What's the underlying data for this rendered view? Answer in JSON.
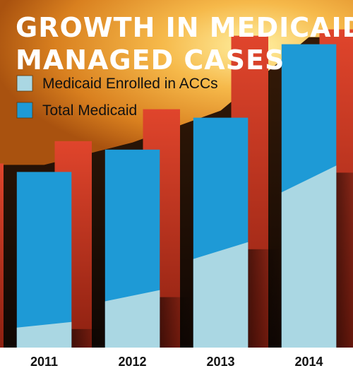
{
  "chart_data": {
    "type": "bar",
    "title_lines": [
      "GROWTH IN MEDICAID",
      "MANAGED CASES"
    ],
    "categories": [
      "2011",
      "2012",
      "2013",
      "2014"
    ],
    "series": [
      {
        "name": "Medicaid Enrolled in ACCs",
        "color": "#aad7e3",
        "values": [
          8,
          18,
          33,
          57
        ]
      },
      {
        "name": "Total Medicaid",
        "color": "#1e9ad6",
        "values": [
          55,
          62,
          72,
          95
        ]
      }
    ],
    "background_bar_color": "#d23a26",
    "ylim": [
      0,
      100
    ],
    "legend_position": "top-left",
    "grid": false
  }
}
